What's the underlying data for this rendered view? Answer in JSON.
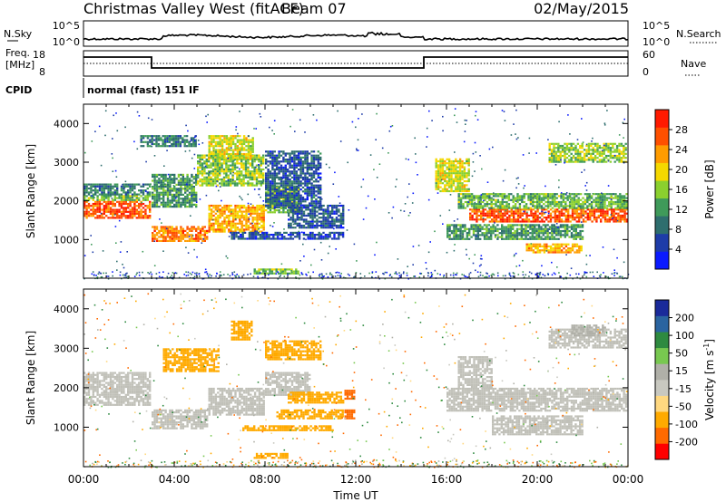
{
  "header": {
    "title": "Christmas Valley West (fitACF)",
    "beam": "Beam 07",
    "date": "02/May/2015"
  },
  "strip_nsky": {
    "left_label": "N.Sky",
    "right_label": "N.Search",
    "left_ticks": [
      "10^5",
      "10^0"
    ],
    "right_ticks": [
      "10^5",
      "10^0"
    ]
  },
  "strip_freq": {
    "left_label_1": "Freq.",
    "left_label_2": "[MHz]",
    "right_label": "Nave",
    "left_ticks": [
      "18",
      "8"
    ],
    "right_ticks": [
      "60",
      "0"
    ]
  },
  "cpid": {
    "label": "CPID",
    "value": "normal (fast) 151 IF"
  },
  "colors": {
    "power_scale": [
      "#0a1aff",
      "#1e3ca8",
      "#2e6e6e",
      "#3f9a5a",
      "#8bd02e",
      "#f5d800",
      "#ff9c00",
      "#ff5000",
      "#ff1a00"
    ],
    "velocity_scale": [
      "#ff0000",
      "#ff6a00",
      "#ffaa00",
      "#ffd880",
      "#c8c8c0",
      "#b0b0a8",
      "#78c850",
      "#2e8a40",
      "#2a64a0",
      "#1a2a9a"
    ],
    "ground_scatter": "#c0c0b8"
  },
  "chart_data": [
    {
      "type": "heatmap",
      "quantity": "power",
      "ylabel": "Slant Range [km]",
      "ylim": [
        0,
        4500
      ],
      "yticks": [
        "1000",
        "2000",
        "3000",
        "4000"
      ],
      "xlim_hours": [
        0,
        24
      ],
      "colorbar_label": "Power [dB]",
      "colorbar_ticks": [
        "4",
        "8",
        "12",
        "16",
        "20",
        "24",
        "28"
      ],
      "bands": [
        {
          "t": [
            0,
            3
          ],
          "r": [
            1550,
            2000
          ],
          "v": 27
        },
        {
          "t": [
            0,
            3
          ],
          "r": [
            2000,
            2150
          ],
          "v": 15
        },
        {
          "t": [
            0,
            3
          ],
          "r": [
            2150,
            2450
          ],
          "v": 10
        },
        {
          "t": [
            3,
            5.5
          ],
          "r": [
            950,
            1350
          ],
          "v": 25
        },
        {
          "t": [
            5.5,
            8
          ],
          "r": [
            1200,
            1900
          ],
          "v": 22
        },
        {
          "t": [
            8,
            9.5
          ],
          "r": [
            1700,
            2400
          ],
          "v": 15
        },
        {
          "t": [
            3,
            5
          ],
          "r": [
            1800,
            2700
          ],
          "v": 12
        },
        {
          "t": [
            5,
            8
          ],
          "r": [
            2400,
            3200
          ],
          "v": 16
        },
        {
          "t": [
            8,
            10.5
          ],
          "r": [
            1800,
            3300
          ],
          "v": 7
        },
        {
          "t": [
            5.5,
            7.5
          ],
          "r": [
            3100,
            3700
          ],
          "v": 18
        },
        {
          "t": [
            2.5,
            5
          ],
          "r": [
            3400,
            3700
          ],
          "v": 10
        },
        {
          "t": [
            6.5,
            11.5
          ],
          "r": [
            1000,
            1200
          ],
          "v": 6
        },
        {
          "t": [
            9,
            11.5
          ],
          "r": [
            1300,
            1900
          ],
          "v": 7
        },
        {
          "t": [
            7.5,
            9.5
          ],
          "r": [
            100,
            250
          ],
          "v": 15
        },
        {
          "t": [
            15.5,
            17
          ],
          "r": [
            2200,
            3100
          ],
          "v": 18
        },
        {
          "t": [
            17,
            24
          ],
          "r": [
            1450,
            1800
          ],
          "v": 27
        },
        {
          "t": [
            16.5,
            24
          ],
          "r": [
            1800,
            2200
          ],
          "v": 14
        },
        {
          "t": [
            16,
            22
          ],
          "r": [
            1000,
            1400
          ],
          "v": 12
        },
        {
          "t": [
            19.5,
            22
          ],
          "r": [
            650,
            900
          ],
          "v": 22
        },
        {
          "t": [
            20.5,
            24
          ],
          "r": [
            3000,
            3500
          ],
          "v": 16
        }
      ]
    },
    {
      "type": "heatmap",
      "quantity": "velocity",
      "xlabel": "Time UT",
      "ylabel": "Slant Range [km]",
      "ylim": [
        0,
        4500
      ],
      "yticks": [
        "1000",
        "2000",
        "3000",
        "4000"
      ],
      "xlim_hours": [
        0,
        24
      ],
      "xticks": [
        "00:00",
        "04:00",
        "08:00",
        "12:00",
        "16:00",
        "20:00",
        "00:00"
      ],
      "colorbar_label": "Velocity [m s",
      "colorbar_label_sup": "-1",
      "colorbar_label_end": "]",
      "colorbar_ticks": [
        "-200",
        "-100",
        "-50",
        "-15",
        "15",
        "50",
        "100",
        "200"
      ],
      "bands": [
        {
          "t": [
            0,
            3
          ],
          "r": [
            1550,
            2400
          ],
          "v": 0
        },
        {
          "t": [
            3,
            5.5
          ],
          "r": [
            950,
            1450
          ],
          "v": 0
        },
        {
          "t": [
            5.5,
            8
          ],
          "r": [
            1300,
            2000
          ],
          "v": 0
        },
        {
          "t": [
            8,
            10
          ],
          "r": [
            1800,
            2400
          ],
          "v": 0
        },
        {
          "t": [
            3.5,
            6
          ],
          "r": [
            2400,
            3000
          ],
          "v": -60
        },
        {
          "t": [
            8,
            10.5
          ],
          "r": [
            2700,
            3200
          ],
          "v": -60
        },
        {
          "t": [
            6.5,
            7.5
          ],
          "r": [
            3200,
            3700
          ],
          "v": -60
        },
        {
          "t": [
            9,
            11.5
          ],
          "r": [
            1600,
            1900
          ],
          "v": -60
        },
        {
          "t": [
            8.5,
            11.5
          ],
          "r": [
            1200,
            1450
          ],
          "v": -60
        },
        {
          "t": [
            7,
            11
          ],
          "r": [
            900,
            1050
          ],
          "v": -60
        },
        {
          "t": [
            11.5,
            12
          ],
          "r": [
            1200,
            1450
          ],
          "v": -150
        },
        {
          "t": [
            11.5,
            12
          ],
          "r": [
            1700,
            1950
          ],
          "v": -150
        },
        {
          "t": [
            7.5,
            9
          ],
          "r": [
            200,
            350
          ],
          "v": -60
        },
        {
          "t": [
            16,
            24
          ],
          "r": [
            1400,
            2000
          ],
          "v": 0
        },
        {
          "t": [
            16.5,
            18
          ],
          "r": [
            2000,
            2800
          ],
          "v": 0
        },
        {
          "t": [
            18,
            22
          ],
          "r": [
            800,
            1300
          ],
          "v": 0
        },
        {
          "t": [
            20.5,
            24
          ],
          "r": [
            3000,
            3500
          ],
          "v": 0
        },
        {
          "t": [
            21.5,
            23
          ],
          "r": [
            3300,
            3600
          ],
          "v": 20
        }
      ]
    }
  ]
}
